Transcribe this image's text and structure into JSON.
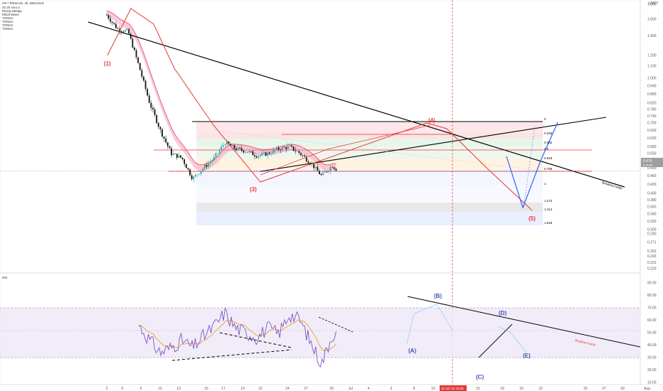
{
  "header": {
    "symbol": "OP / TetherUS, 4h, BINANCE",
    "lines": [
      "20 20 sma 4",
      "Rising Wedge",
      "Elliott Wave",
      "TONNA",
      "TONNA",
      "TONNA",
      "TONNA"
    ]
  },
  "price_axis": {
    "currency": "USDT",
    "ticks": [
      "1.800",
      "1.600",
      "1.400",
      "1.200",
      "1.100",
      "1.000",
      "0.940",
      "0.880",
      "0.820",
      "0.780",
      "0.740",
      "0.700",
      "0.660",
      "0.620",
      "0.580",
      "0.550",
      "0.520",
      "0.490",
      "0.460",
      "0.430",
      "0.400",
      "0.380",
      "0.360",
      "0.340",
      "0.320",
      "0.300",
      "0.290",
      "0.271",
      "0.253",
      "0.243",
      "0.231",
      "0.220"
    ],
    "current_price": "0.479",
    "current_price_sub": "6:45:39"
  },
  "rsi_panel": {
    "label": "RSI",
    "ticks": [
      "90.00",
      "80.00",
      "70.00",
      "60.00",
      "50.00",
      "40.00",
      "30.00",
      "20.00",
      "10.00"
    ],
    "band_upper": 70,
    "band_lower": 30,
    "breakout_label": "Breakout trade"
  },
  "time_axis": {
    "labels": [
      "3",
      "6",
      "9",
      "10",
      "13",
      "15",
      "17",
      "19",
      "22",
      "24",
      "27",
      "29",
      "Jul",
      "4",
      "6",
      "8",
      "10",
      "13",
      "15",
      "18",
      "20",
      "22",
      "25",
      "27",
      "29"
    ],
    "crosshair_label": "10 Jul '23  15:00",
    "end_label": "Aug"
  },
  "wave_labels": {
    "w1": "(1)",
    "w3": "(3)",
    "w4": "(4)",
    "w5": "(5)",
    "A": "(A)",
    "B": "(B)",
    "C": "(C)",
    "D": "(D)",
    "E": "(E)"
  },
  "annotations": {
    "breakout": "Breakout trade"
  },
  "fib_levels": [
    {
      "label": "0",
      "color": "#888888"
    },
    {
      "label": "0.236",
      "color": "#e03030"
    },
    {
      "label": "0.382",
      "color": "#4caf50"
    },
    {
      "label": "0.5",
      "color": "#4caf50"
    },
    {
      "label": "0.618",
      "color": "#f0a030"
    },
    {
      "label": "0.786",
      "color": "#e03030"
    },
    {
      "label": "1",
      "color": "#888888"
    },
    {
      "label": "1.272",
      "color": "#e03030"
    },
    {
      "label": "1.414",
      "color": "#e03030"
    },
    {
      "label": "1.618",
      "color": "#2962ff"
    }
  ],
  "colors": {
    "bull": "#26a69a",
    "bear": "#111111",
    "ema_band": "#e8445a",
    "trend": "#000000",
    "rsi": "#7e57c2",
    "rsi_ma": "#f0a030",
    "wave_red": "#e53935",
    "wave_blue": "#3f51b5",
    "projection": "#2962ff",
    "crosshair": "#e53935"
  },
  "chart_data": {
    "type": "candlestick",
    "title": "OP / TetherUS, 4h, BINANCE",
    "price_axis": {
      "scale": "log",
      "range": [
        0.22,
        1.8
      ]
    },
    "price_path": [
      {
        "x": "Jun 3",
        "y": 1.65
      },
      {
        "x": "Jun 5",
        "y": 1.48
      },
      {
        "x": "Jun 7",
        "y": 1.45
      },
      {
        "x": "Jun 9",
        "y": 1.1
      },
      {
        "x": "Jun 11",
        "y": 0.82
      },
      {
        "x": "Jun 13",
        "y": 0.66
      },
      {
        "x": "Jun 15",
        "y": 0.55
      },
      {
        "x": "Jun 17",
        "y": 0.53
      },
      {
        "x": "Jun 19",
        "y": 0.45
      },
      {
        "x": "Jun 21",
        "y": 0.49
      },
      {
        "x": "Jun 23",
        "y": 0.53
      },
      {
        "x": "Jun 25",
        "y": 0.6
      },
      {
        "x": "Jun 27",
        "y": 0.57
      },
      {
        "x": "Jun 29",
        "y": 0.56
      },
      {
        "x": "Jul 1",
        "y": 0.54
      },
      {
        "x": "Jul 3",
        "y": 0.55
      },
      {
        "x": "Jul 5",
        "y": 0.57
      },
      {
        "x": "Jul 7",
        "y": 0.58
      },
      {
        "x": "Jul 9",
        "y": 0.55
      },
      {
        "x": "Jul 11",
        "y": 0.51
      },
      {
        "x": "Jul 13",
        "y": 0.46
      },
      {
        "x": "Jul 15",
        "y": 0.5
      },
      {
        "x": "Jul 16",
        "y": 0.479
      }
    ],
    "fib_retracement": {
      "levels": [
        0,
        0.236,
        0.382,
        0.5,
        0.618,
        0.786,
        1,
        1.272,
        1.414,
        1.618
      ]
    },
    "rsi": {
      "range": [
        10,
        90
      ],
      "series": [
        {
          "x": "Jun 9",
          "y": 56
        },
        {
          "x": "Jun 11",
          "y": 44
        },
        {
          "x": "Jun 13",
          "y": 34
        },
        {
          "x": "Jun 15",
          "y": 38
        },
        {
          "x": "Jun 17",
          "y": 44
        },
        {
          "x": "Jun 19",
          "y": 38
        },
        {
          "x": "Jun 21",
          "y": 47
        },
        {
          "x": "Jun 23",
          "y": 55
        },
        {
          "x": "Jun 25",
          "y": 66
        },
        {
          "x": "Jun 27",
          "y": 54
        },
        {
          "x": "Jun 29",
          "y": 50
        },
        {
          "x": "Jul 1",
          "y": 46
        },
        {
          "x": "Jul 3",
          "y": 54
        },
        {
          "x": "Jul 5",
          "y": 49
        },
        {
          "x": "Jul 7",
          "y": 65
        },
        {
          "x": "Jul 9",
          "y": 60
        },
        {
          "x": "Jul 11",
          "y": 42
        },
        {
          "x": "Jul 13",
          "y": 25
        },
        {
          "x": "Jul 15",
          "y": 49
        },
        {
          "x": "Jul 16",
          "y": 48
        }
      ]
    },
    "legend": "none",
    "grid": false
  }
}
